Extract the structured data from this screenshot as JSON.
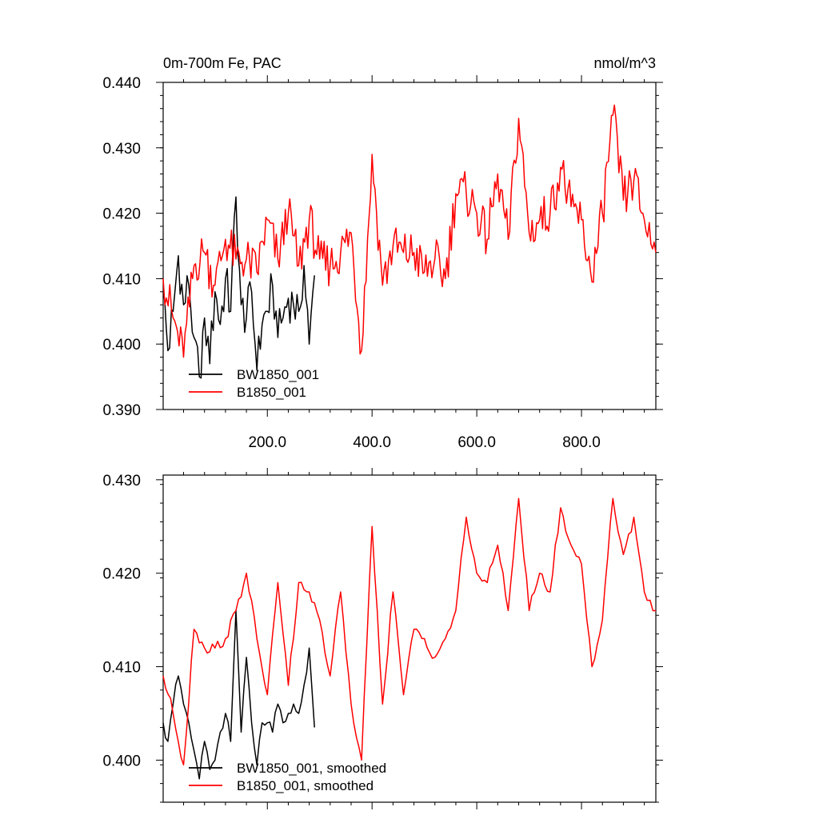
{
  "chart_data": [
    {
      "type": "line",
      "title": "0m-700m Fe, PAC",
      "units": "nmol/m^3",
      "xlim": [
        1,
        942
      ],
      "ylim": [
        0.39,
        0.44
      ],
      "xticks": [
        200,
        400,
        600,
        800
      ],
      "xtick_labels": [
        "200.0",
        "400.0",
        "600.0",
        "800.0"
      ],
      "yticks": [
        0.39,
        0.4,
        0.41,
        0.42,
        0.43,
        0.44
      ],
      "ytick_labels": [
        "0.390",
        "0.400",
        "0.410",
        "0.420",
        "0.430",
        "0.440"
      ],
      "grid": false,
      "legend_position": "bottom-left",
      "series": [
        {
          "name": "BW1850_001",
          "color": "#000000",
          "x": [
            1,
            10,
            20,
            30,
            40,
            50,
            60,
            70,
            80,
            90,
            100,
            110,
            120,
            130,
            140,
            150,
            160,
            170,
            180,
            190,
            200,
            210,
            220,
            230,
            240,
            250,
            260,
            270,
            280,
            290
          ],
          "values": [
            0.408,
            0.399,
            0.405,
            0.4135,
            0.406,
            0.409,
            0.401,
            0.395,
            0.404,
            0.397,
            0.408,
            0.403,
            0.41,
            0.405,
            0.4225,
            0.406,
            0.404,
            0.408,
            0.396,
            0.403,
            0.405,
            0.409,
            0.401,
            0.404,
            0.407,
            0.406,
            0.405,
            0.412,
            0.4,
            0.4105
          ]
        },
        {
          "name": "B1850_001",
          "color": "#ff0000",
          "x": [
            1,
            20,
            40,
            60,
            80,
            100,
            120,
            140,
            160,
            180,
            200,
            220,
            240,
            260,
            280,
            300,
            320,
            340,
            360,
            380,
            400,
            420,
            440,
            460,
            480,
            500,
            520,
            540,
            560,
            580,
            600,
            620,
            640,
            660,
            680,
            700,
            720,
            740,
            760,
            780,
            800,
            820,
            840,
            860,
            880,
            900,
            920,
            942
          ],
          "values": [
            0.41,
            0.404,
            0.398,
            0.412,
            0.414,
            0.409,
            0.416,
            0.413,
            0.413,
            0.411,
            0.419,
            0.413,
            0.42,
            0.412,
            0.419,
            0.413,
            0.412,
            0.414,
            0.417,
            0.399,
            0.429,
            0.409,
            0.415,
            0.414,
            0.414,
            0.411,
            0.413,
            0.41,
            0.423,
            0.423,
            0.42,
            0.416,
            0.426,
            0.416,
            0.4345,
            0.417,
            0.419,
            0.42,
            0.427,
            0.421,
            0.419,
            0.4095,
            0.42,
            0.435,
            0.422,
            0.425,
            0.419,
            0.414
          ]
        }
      ]
    },
    {
      "type": "line",
      "xlim": [
        1,
        942
      ],
      "ylim": [
        0.3955,
        0.4305
      ],
      "yticks": [
        0.4,
        0.41,
        0.42,
        0.43
      ],
      "ytick_labels": [
        "0.400",
        "0.410",
        "0.420",
        "0.430"
      ],
      "grid": false,
      "legend_position": "bottom-left",
      "series": [
        {
          "name": "BW1850_001, smoothed",
          "color": "#000000",
          "x": [
            1,
            10,
            20,
            30,
            40,
            50,
            60,
            70,
            80,
            90,
            100,
            110,
            120,
            130,
            140,
            150,
            160,
            170,
            180,
            190,
            200,
            210,
            220,
            230,
            240,
            250,
            260,
            270,
            280,
            290
          ],
          "values": [
            0.404,
            0.402,
            0.406,
            0.409,
            0.406,
            0.404,
            0.401,
            0.398,
            0.402,
            0.399,
            0.4,
            0.403,
            0.405,
            0.402,
            0.416,
            0.403,
            0.411,
            0.404,
            0.3995,
            0.404,
            0.404,
            0.403,
            0.406,
            0.404,
            0.405,
            0.406,
            0.405,
            0.408,
            0.412,
            0.4035
          ]
        },
        {
          "name": "B1850_001, smoothed",
          "color": "#ff0000",
          "x": [
            1,
            20,
            40,
            60,
            80,
            100,
            120,
            140,
            160,
            180,
            200,
            220,
            240,
            260,
            280,
            300,
            320,
            340,
            360,
            380,
            400,
            420,
            440,
            460,
            480,
            500,
            520,
            540,
            560,
            580,
            600,
            620,
            640,
            660,
            680,
            700,
            720,
            740,
            760,
            780,
            800,
            820,
            840,
            860,
            880,
            900,
            920,
            942
          ],
          "values": [
            0.409,
            0.405,
            0.3995,
            0.414,
            0.412,
            0.412,
            0.413,
            0.416,
            0.42,
            0.413,
            0.407,
            0.419,
            0.408,
            0.419,
            0.418,
            0.415,
            0.409,
            0.418,
            0.406,
            0.4,
            0.425,
            0.406,
            0.418,
            0.407,
            0.414,
            0.413,
            0.411,
            0.413,
            0.416,
            0.426,
            0.42,
            0.419,
            0.423,
            0.416,
            0.428,
            0.416,
            0.42,
            0.418,
            0.427,
            0.423,
            0.421,
            0.41,
            0.415,
            0.428,
            0.422,
            0.426,
            0.418,
            0.416
          ]
        }
      ]
    }
  ]
}
